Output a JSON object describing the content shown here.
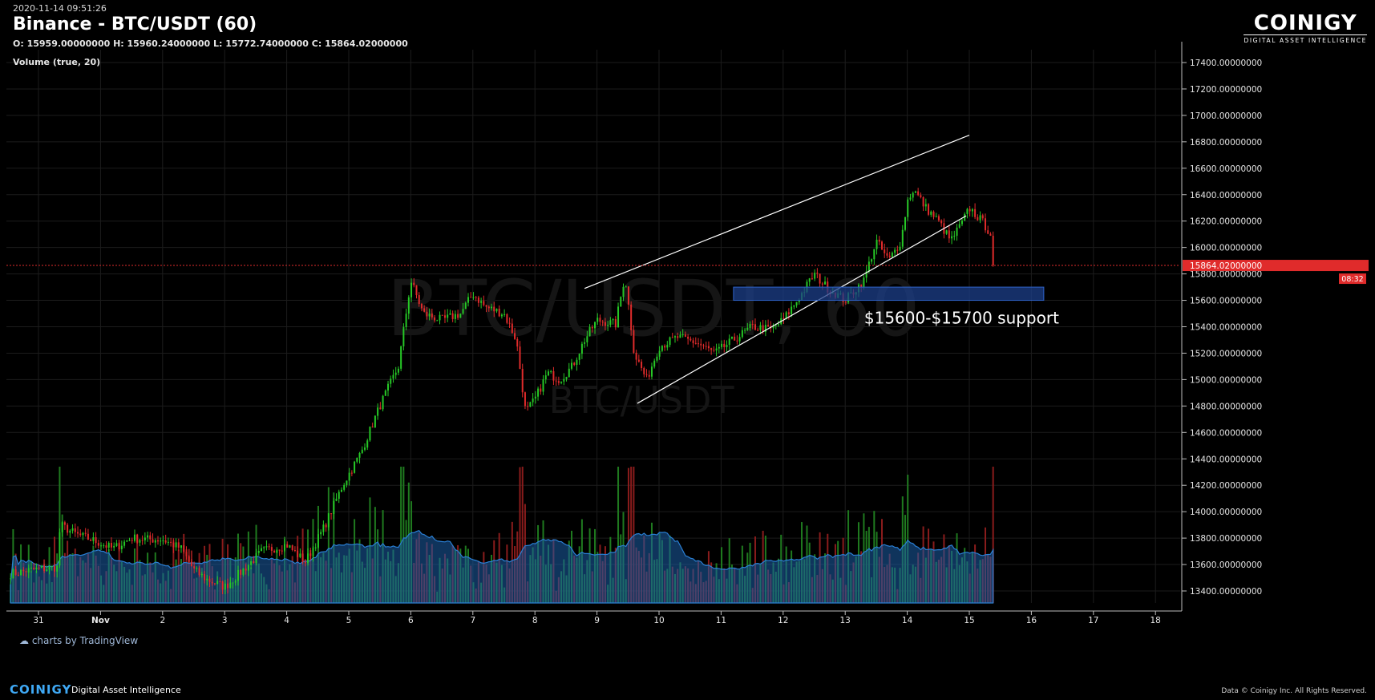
{
  "header": {
    "timestamp": "2020-11-14 09:51:26",
    "title": "Binance - BTC/USDT (60)",
    "ohlc": "O: 15959.00000000 H: 15960.24000000 L: 15772.74000000 C: 15864.02000000",
    "volume_indicator": "Volume (true, 20)"
  },
  "logo": {
    "word": "COINIGY",
    "tagline": "DIGITAL ASSET INTELLIGENCE"
  },
  "watermark": {
    "line1": "BTC/USDT, 60",
    "line2": "BTC/USDT"
  },
  "tradingview": {
    "label": "charts by TradingView"
  },
  "footer": {
    "brand": "COINIGY",
    "tagline": "Digital Asset Intelligence",
    "credit": "Data © Coinigy Inc.  All Rights Reserved."
  },
  "colors": {
    "up": "#26c826",
    "down": "#e02b2b",
    "volume_ma": "#1b5fa8",
    "last_price": "#e02b2b",
    "support_zone": "#1c3f8a",
    "trendline": "#ffffff"
  },
  "chart_data": {
    "type": "candlestick",
    "symbol": "BTC/USDT",
    "exchange": "Binance",
    "interval": "60",
    "x_tick_labels": [
      "31",
      "Nov",
      "2",
      "3",
      "4",
      "5",
      "6",
      "7",
      "8",
      "9",
      "10",
      "11",
      "12",
      "13",
      "14",
      "15",
      "16",
      "17",
      "18"
    ],
    "y_tick_labels": [
      "13400.00000000",
      "13600.00000000",
      "13800.00000000",
      "14000.00000000",
      "14200.00000000",
      "14400.00000000",
      "14600.00000000",
      "14800.00000000",
      "15000.00000000",
      "15200.00000000",
      "15400.00000000",
      "15600.00000000",
      "15800.00000000",
      "16000.00000000",
      "16200.00000000",
      "16400.00000000",
      "16600.00000000",
      "16800.00000000",
      "17000.00000000",
      "17200.00000000",
      "17400.00000000"
    ],
    "ylim": [
      13300,
      17480
    ],
    "xlim_days": [
      30.5,
      48.7
    ],
    "last_price": {
      "value": 15864.02,
      "label": "15864.02000000",
      "countdown": "08:32"
    },
    "price_path": [
      {
        "day": 30.55,
        "price": 13530
      },
      {
        "day": 30.9,
        "price": 13560
      },
      {
        "day": 31.3,
        "price": 13580
      },
      {
        "day": 31.35,
        "price": 13900
      },
      {
        "day": 31.6,
        "price": 13830
      },
      {
        "day": 31.9,
        "price": 13780
      },
      {
        "day": 32.2,
        "price": 13720
      },
      {
        "day": 32.5,
        "price": 13800
      },
      {
        "day": 32.8,
        "price": 13790
      },
      {
        "day": 33.0,
        "price": 13790
      },
      {
        "day": 33.3,
        "price": 13720
      },
      {
        "day": 33.5,
        "price": 13560
      },
      {
        "day": 33.7,
        "price": 13490
      },
      {
        "day": 34.0,
        "price": 13430
      },
      {
        "day": 34.3,
        "price": 13560
      },
      {
        "day": 34.6,
        "price": 13700
      },
      {
        "day": 35.0,
        "price": 13750
      },
      {
        "day": 35.3,
        "price": 13620
      },
      {
        "day": 35.6,
        "price": 13880
      },
      {
        "day": 35.9,
        "price": 14200
      },
      {
        "day": 36.2,
        "price": 14450
      },
      {
        "day": 36.5,
        "price": 14800
      },
      {
        "day": 36.8,
        "price": 15100
      },
      {
        "day": 37.0,
        "price": 15750
      },
      {
        "day": 37.2,
        "price": 15500
      },
      {
        "day": 37.5,
        "price": 15450
      },
      {
        "day": 37.8,
        "price": 15500
      },
      {
        "day": 38.0,
        "price": 15650
      },
      {
        "day": 38.2,
        "price": 15550
      },
      {
        "day": 38.5,
        "price": 15500
      },
      {
        "day": 38.7,
        "price": 15300
      },
      {
        "day": 38.85,
        "price": 14750
      },
      {
        "day": 39.0,
        "price": 14850
      },
      {
        "day": 39.2,
        "price": 15050
      },
      {
        "day": 39.4,
        "price": 15000
      },
      {
        "day": 39.6,
        "price": 15100
      },
      {
        "day": 39.8,
        "price": 15300
      },
      {
        "day": 40.0,
        "price": 15450
      },
      {
        "day": 40.3,
        "price": 15420
      },
      {
        "day": 40.45,
        "price": 15790
      },
      {
        "day": 40.6,
        "price": 15200
      },
      {
        "day": 40.8,
        "price": 15000
      },
      {
        "day": 41.0,
        "price": 15250
      },
      {
        "day": 41.3,
        "price": 15320
      },
      {
        "day": 41.6,
        "price": 15280
      },
      {
        "day": 41.9,
        "price": 15200
      },
      {
        "day": 42.2,
        "price": 15300
      },
      {
        "day": 42.5,
        "price": 15400
      },
      {
        "day": 42.8,
        "price": 15380
      },
      {
        "day": 43.0,
        "price": 15450
      },
      {
        "day": 43.3,
        "price": 15650
      },
      {
        "day": 43.5,
        "price": 15800
      },
      {
        "day": 43.7,
        "price": 15700
      },
      {
        "day": 44.0,
        "price": 15600
      },
      {
        "day": 44.3,
        "price": 15750
      },
      {
        "day": 44.5,
        "price": 16050
      },
      {
        "day": 44.7,
        "price": 15900
      },
      {
        "day": 44.9,
        "price": 16050
      },
      {
        "day": 45.0,
        "price": 16350
      },
      {
        "day": 45.1,
        "price": 16440
      },
      {
        "day": 45.3,
        "price": 16300
      },
      {
        "day": 45.5,
        "price": 16200
      },
      {
        "day": 45.7,
        "price": 16050
      },
      {
        "day": 45.9,
        "price": 16200
      },
      {
        "day": 46.0,
        "price": 16300
      },
      {
        "day": 46.2,
        "price": 16200
      },
      {
        "day": 46.35,
        "price": 16100
      },
      {
        "day": 46.4,
        "price": 15860
      }
    ],
    "annotations": [
      {
        "type": "trendline",
        "from": {
          "day": 39.8,
          "price": 15690
        },
        "to": {
          "day": 46.0,
          "price": 16850
        }
      },
      {
        "type": "trendline",
        "from": {
          "day": 40.65,
          "price": 14820
        },
        "to": {
          "day": 45.95,
          "price": 16240
        }
      },
      {
        "type": "zone",
        "day_from": 42.2,
        "day_to": 47.2,
        "price_from": 15600,
        "price_to": 15700,
        "label": "$15600-$15700 support"
      }
    ]
  }
}
